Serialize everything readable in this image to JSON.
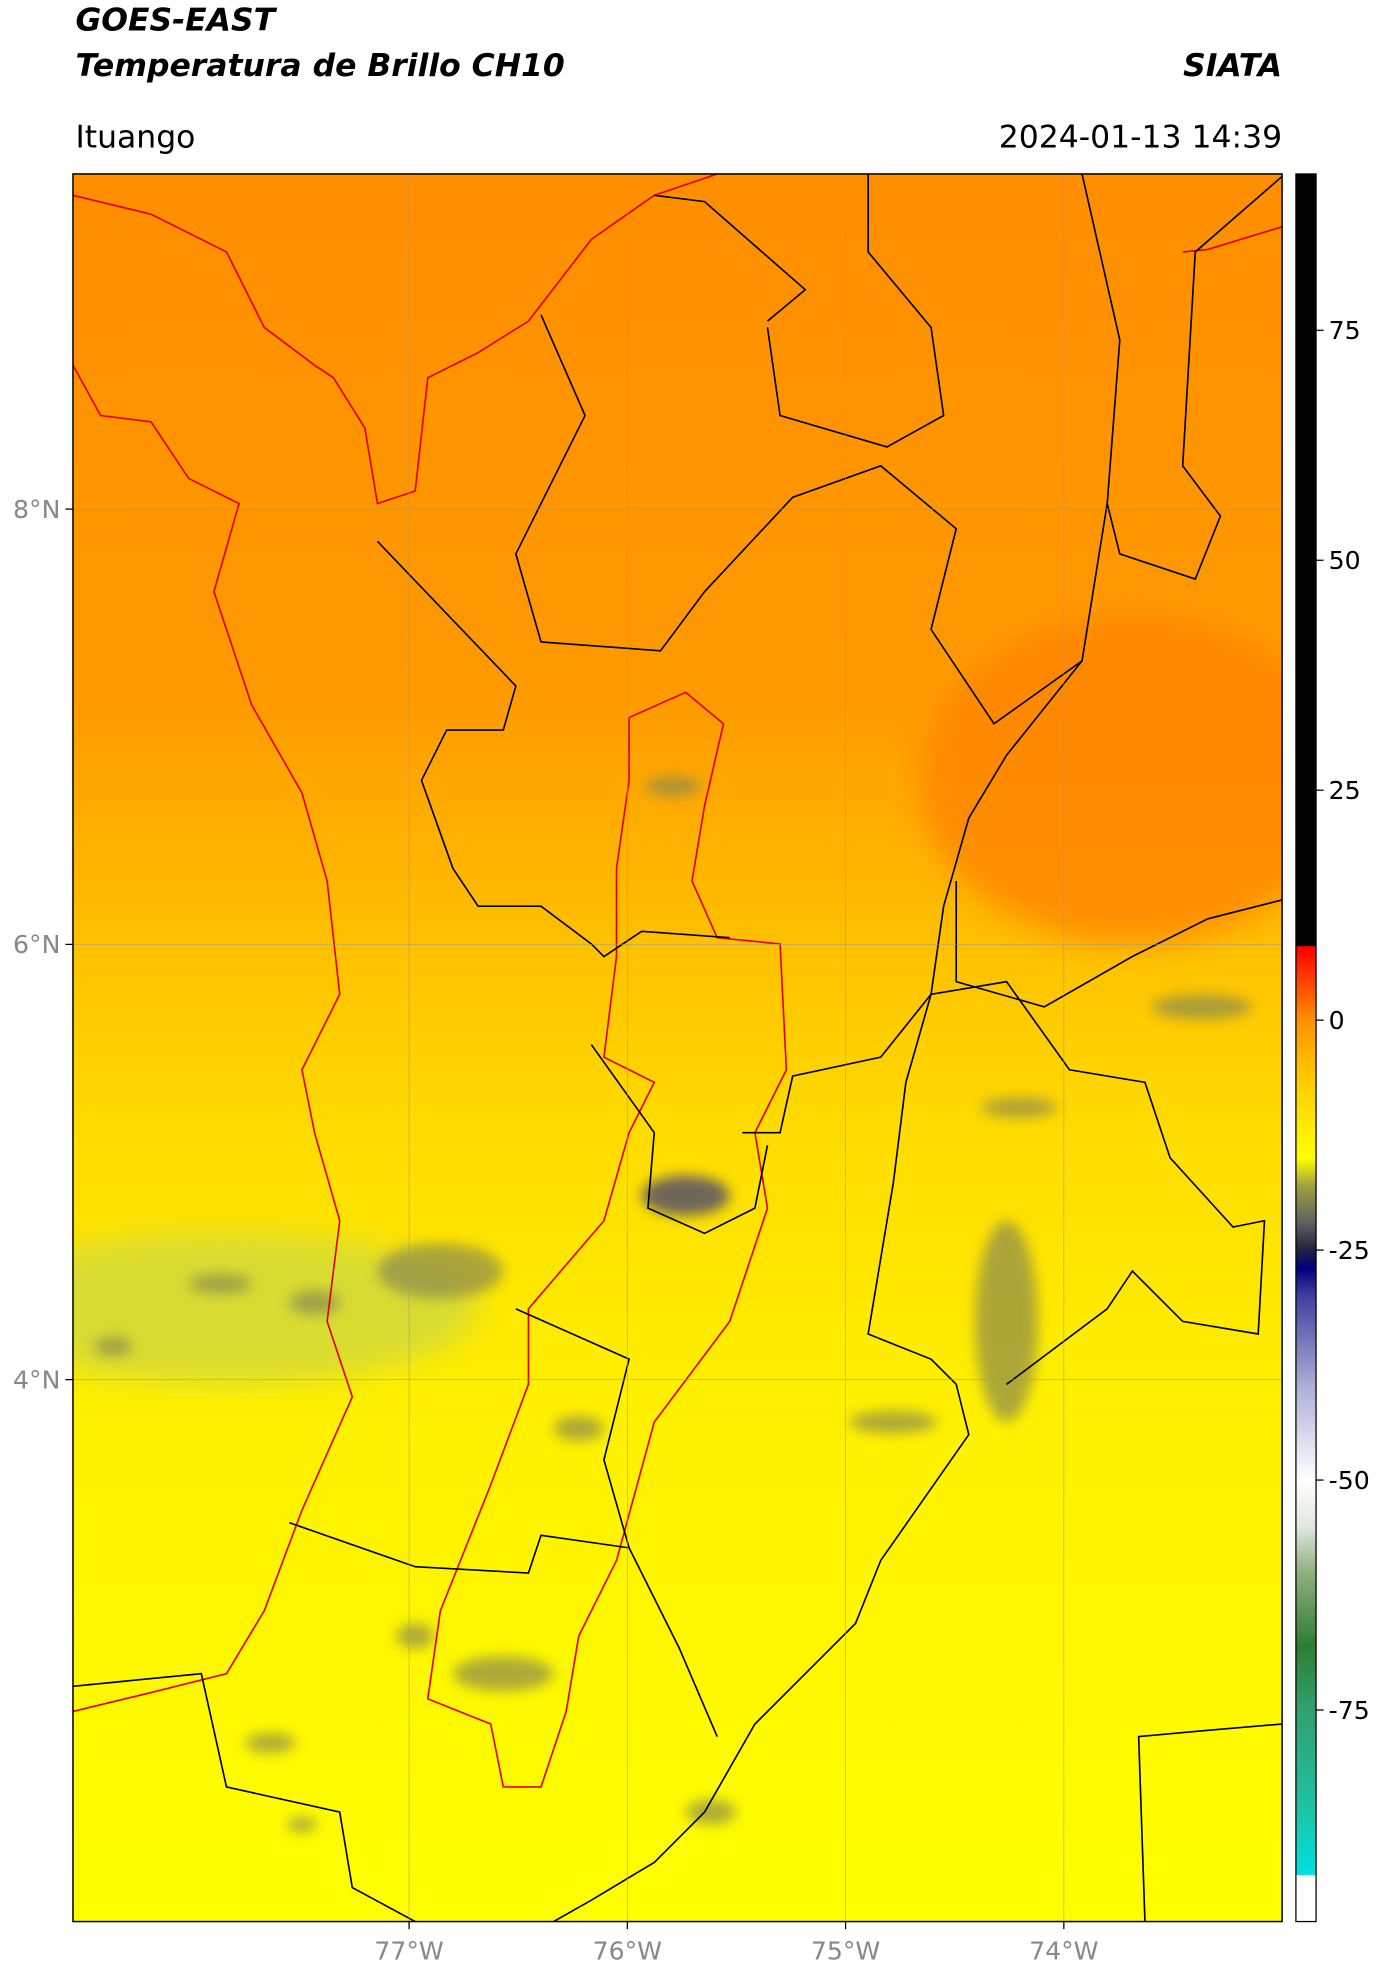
{
  "header": {
    "title_line1": "GOES-EAST",
    "title_line2": "Temperatura de Brillo CH10",
    "source": "SIATA",
    "location": "Ituango",
    "datetime": "2024-01-13 14:39"
  },
  "map": {
    "xlim": [
      -78.54,
      -73.0
    ],
    "ylim": [
      1.51,
      9.54
    ],
    "xticks": [
      {
        "value": -77,
        "label": "77°W"
      },
      {
        "value": -76,
        "label": "76°W"
      },
      {
        "value": -75,
        "label": "75°W"
      },
      {
        "value": -74,
        "label": "74°W"
      }
    ],
    "yticks": [
      {
        "value": 4,
        "label": "4°N"
      },
      {
        "value": 6,
        "label": "6°N"
      },
      {
        "value": 8,
        "label": "8°N"
      }
    ],
    "grid": true
  },
  "colorbar": {
    "ylim": [
      -98,
      92
    ],
    "yticks": [
      -75,
      -50,
      -25,
      0,
      25,
      50,
      75
    ],
    "stops": [
      {
        "value": -98,
        "color": "#ffffff"
      },
      {
        "value": -93,
        "color": "#ffffff"
      },
      {
        "value": -92.9,
        "color": "#00e0e0"
      },
      {
        "value": -85,
        "color": "#20c0a0"
      },
      {
        "value": -75,
        "color": "#30a070"
      },
      {
        "value": -68,
        "color": "#2e7d32"
      },
      {
        "value": -60,
        "color": "#90b080"
      },
      {
        "value": -55,
        "color": "#e0e8e0"
      },
      {
        "value": -50,
        "color": "#ffffff"
      },
      {
        "value": -40,
        "color": "#b0b0d8"
      },
      {
        "value": -30,
        "color": "#4040a0"
      },
      {
        "value": -27,
        "color": "#000080"
      },
      {
        "value": -25,
        "color": "#202040"
      },
      {
        "value": -22,
        "color": "#606060"
      },
      {
        "value": -18,
        "color": "#a0a040"
      },
      {
        "value": -15,
        "color": "#ffff00"
      },
      {
        "value": -5,
        "color": "#ffc000"
      },
      {
        "value": 0,
        "color": "#ff9000"
      },
      {
        "value": 7,
        "color": "#ff1000"
      },
      {
        "value": 8,
        "color": "#ff0000"
      },
      {
        "value": 8.1,
        "color": "#000000"
      },
      {
        "value": 92,
        "color": "#000000"
      }
    ]
  }
}
